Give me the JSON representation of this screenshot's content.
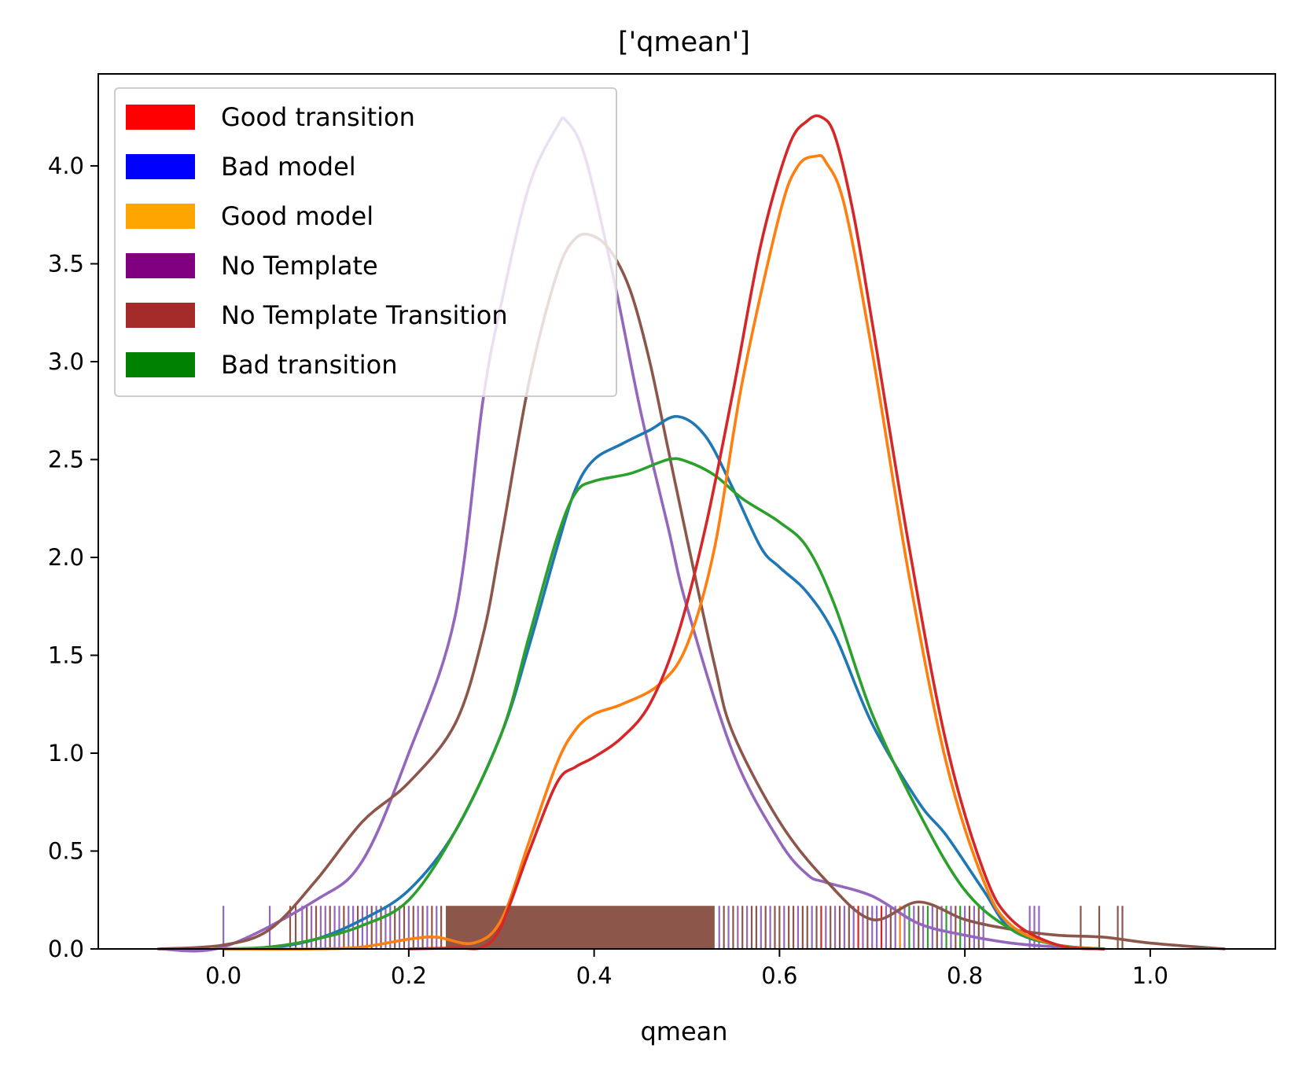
{
  "chart_data": {
    "type": "line",
    "title": "['qmean']",
    "xlabel": "qmean",
    "ylabel": "",
    "xlim": [
      -0.135,
      1.135
    ],
    "ylim": [
      0,
      4.47
    ],
    "xticks": [
      "0.0",
      "0.2",
      "0.4",
      "0.6",
      "0.8",
      "1.0"
    ],
    "yticks": [
      "0.0",
      "0.5",
      "1.0",
      "1.5",
      "2.0",
      "2.5",
      "3.0",
      "3.5",
      "4.0"
    ],
    "grid": false,
    "legend_position": "top-left",
    "legend": [
      {
        "label": "Good transition",
        "color": "#ff0000"
      },
      {
        "label": "Bad model",
        "color": "#0000ff"
      },
      {
        "label": "Good model",
        "color": "#ffa500"
      },
      {
        "label": "No Template",
        "color": "#800080"
      },
      {
        "label": "No Template Transition",
        "color": "#a52a2a"
      },
      {
        "label": "Bad transition",
        "color": "#008000"
      }
    ],
    "series": [
      {
        "color": "#9467bd",
        "x": [
          -0.07,
          0.0,
          0.1,
          0.15,
          0.2,
          0.25,
          0.28,
          0.3,
          0.33,
          0.36,
          0.37,
          0.39,
          0.42,
          0.45,
          0.48,
          0.5,
          0.55,
          0.6,
          0.63,
          0.65,
          0.7,
          0.75,
          0.8,
          0.85,
          0.9,
          0.95
        ],
        "y": [
          0,
          0.01,
          0.25,
          0.45,
          1.0,
          1.7,
          2.8,
          3.3,
          3.9,
          4.2,
          4.23,
          4.05,
          3.45,
          2.75,
          2.15,
          1.75,
          1.0,
          0.55,
          0.38,
          0.34,
          0.27,
          0.13,
          0.07,
          0.03,
          0.01,
          0
        ]
      },
      {
        "color": "#8c564b",
        "x": [
          -0.07,
          0.0,
          0.05,
          0.1,
          0.15,
          0.2,
          0.25,
          0.28,
          0.3,
          0.33,
          0.36,
          0.38,
          0.4,
          0.42,
          0.44,
          0.46,
          0.48,
          0.5,
          0.53,
          0.55,
          0.6,
          0.65,
          0.7,
          0.75,
          0.8,
          0.85,
          0.9,
          0.95,
          1.0,
          1.08
        ],
        "y": [
          0,
          0.02,
          0.1,
          0.35,
          0.65,
          0.85,
          1.15,
          1.6,
          2.1,
          2.9,
          3.45,
          3.63,
          3.64,
          3.55,
          3.35,
          3.0,
          2.55,
          2.1,
          1.45,
          1.1,
          0.65,
          0.35,
          0.15,
          0.24,
          0.15,
          0.1,
          0.07,
          0.06,
          0.03,
          0
        ]
      },
      {
        "color": "#1f77b4",
        "x": [
          0.0,
          0.05,
          0.1,
          0.15,
          0.2,
          0.25,
          0.3,
          0.33,
          0.36,
          0.38,
          0.4,
          0.43,
          0.46,
          0.49,
          0.52,
          0.55,
          0.58,
          0.6,
          0.63,
          0.66,
          0.7,
          0.75,
          0.78,
          0.82,
          0.85,
          0.9,
          0.95
        ],
        "y": [
          0,
          0.005,
          0.05,
          0.15,
          0.3,
          0.6,
          1.1,
          1.55,
          2.05,
          2.35,
          2.5,
          2.58,
          2.65,
          2.72,
          2.62,
          2.35,
          2.05,
          1.95,
          1.82,
          1.6,
          1.15,
          0.75,
          0.58,
          0.3,
          0.1,
          0.02,
          0
        ]
      },
      {
        "color": "#2ca02c",
        "x": [
          0.0,
          0.05,
          0.1,
          0.15,
          0.2,
          0.25,
          0.3,
          0.33,
          0.36,
          0.38,
          0.4,
          0.44,
          0.48,
          0.5,
          0.53,
          0.56,
          0.6,
          0.63,
          0.66,
          0.7,
          0.75,
          0.8,
          0.85,
          0.9,
          0.95
        ],
        "y": [
          0,
          0.01,
          0.05,
          0.12,
          0.25,
          0.6,
          1.1,
          1.6,
          2.1,
          2.33,
          2.39,
          2.43,
          2.5,
          2.49,
          2.42,
          2.3,
          2.18,
          2.05,
          1.75,
          1.2,
          0.7,
          0.3,
          0.1,
          0.02,
          0
        ]
      },
      {
        "color": "#ff7f0e",
        "x": [
          0.0,
          0.1,
          0.15,
          0.2,
          0.23,
          0.27,
          0.3,
          0.33,
          0.36,
          0.38,
          0.4,
          0.43,
          0.47,
          0.5,
          0.53,
          0.56,
          0.6,
          0.62,
          0.64,
          0.65,
          0.67,
          0.7,
          0.74,
          0.78,
          0.82,
          0.85,
          0.9,
          0.95
        ],
        "y": [
          0,
          0.0,
          0.01,
          0.05,
          0.06,
          0.03,
          0.15,
          0.55,
          0.95,
          1.12,
          1.2,
          1.25,
          1.35,
          1.55,
          2.05,
          2.9,
          3.75,
          4.0,
          4.05,
          4.02,
          3.8,
          3.05,
          1.9,
          0.95,
          0.35,
          0.12,
          0.02,
          0
        ]
      },
      {
        "color": "#d62728",
        "x": [
          0.2,
          0.25,
          0.28,
          0.3,
          0.33,
          0.36,
          0.38,
          0.4,
          0.43,
          0.46,
          0.49,
          0.52,
          0.55,
          0.58,
          0.61,
          0.63,
          0.645,
          0.66,
          0.68,
          0.7,
          0.74,
          0.78,
          0.82,
          0.85,
          0.9,
          0.95
        ],
        "y": [
          0,
          0.005,
          0.01,
          0.12,
          0.5,
          0.85,
          0.93,
          0.98,
          1.08,
          1.25,
          1.6,
          2.15,
          2.85,
          3.6,
          4.1,
          4.23,
          4.25,
          4.15,
          3.75,
          3.2,
          2.05,
          1.05,
          0.4,
          0.15,
          0.02,
          0
        ]
      }
    ],
    "rug": {
      "height": 0.22,
      "dense_range": [
        0.24,
        0.53
      ],
      "ticks": [
        {
          "x": 0.0,
          "color": "#9467bd"
        },
        {
          "x": 0.05,
          "color": "#9467bd"
        },
        {
          "x": 0.072,
          "color": "#8c564b"
        },
        {
          "x": 0.078,
          "color": "#8c564b"
        },
        {
          "x": 0.085,
          "color": "#9467bd"
        },
        {
          "x": 0.09,
          "color": "#8c564b"
        },
        {
          "x": 0.095,
          "color": "#9467bd"
        },
        {
          "x": 0.1,
          "color": "#8c564b"
        },
        {
          "x": 0.105,
          "color": "#9467bd"
        },
        {
          "x": 0.11,
          "color": "#9467bd"
        },
        {
          "x": 0.115,
          "color": "#8c564b"
        },
        {
          "x": 0.12,
          "color": "#9467bd"
        },
        {
          "x": 0.125,
          "color": "#9467bd"
        },
        {
          "x": 0.13,
          "color": "#8c564b"
        },
        {
          "x": 0.135,
          "color": "#9467bd"
        },
        {
          "x": 0.14,
          "color": "#9467bd"
        },
        {
          "x": 0.145,
          "color": "#8c564b"
        },
        {
          "x": 0.15,
          "color": "#9467bd"
        },
        {
          "x": 0.155,
          "color": "#9467bd"
        },
        {
          "x": 0.16,
          "color": "#8c564b"
        },
        {
          "x": 0.165,
          "color": "#9467bd"
        },
        {
          "x": 0.17,
          "color": "#8c564b"
        },
        {
          "x": 0.175,
          "color": "#9467bd"
        },
        {
          "x": 0.18,
          "color": "#9467bd"
        },
        {
          "x": 0.185,
          "color": "#8c564b"
        },
        {
          "x": 0.19,
          "color": "#9467bd"
        },
        {
          "x": 0.195,
          "color": "#8c564b"
        },
        {
          "x": 0.2,
          "color": "#9467bd"
        },
        {
          "x": 0.205,
          "color": "#8c564b"
        },
        {
          "x": 0.21,
          "color": "#9467bd"
        },
        {
          "x": 0.215,
          "color": "#8c564b"
        },
        {
          "x": 0.22,
          "color": "#9467bd"
        },
        {
          "x": 0.225,
          "color": "#8c564b"
        },
        {
          "x": 0.23,
          "color": "#9467bd"
        },
        {
          "x": 0.235,
          "color": "#8c564b"
        },
        {
          "x": 0.535,
          "color": "#9467bd"
        },
        {
          "x": 0.54,
          "color": "#8c564b"
        },
        {
          "x": 0.545,
          "color": "#9467bd"
        },
        {
          "x": 0.55,
          "color": "#8c564b"
        },
        {
          "x": 0.555,
          "color": "#9467bd"
        },
        {
          "x": 0.56,
          "color": "#8c564b"
        },
        {
          "x": 0.565,
          "color": "#9467bd"
        },
        {
          "x": 0.57,
          "color": "#8c564b"
        },
        {
          "x": 0.575,
          "color": "#8c564b"
        },
        {
          "x": 0.58,
          "color": "#9467bd"
        },
        {
          "x": 0.585,
          "color": "#8c564b"
        },
        {
          "x": 0.59,
          "color": "#9467bd"
        },
        {
          "x": 0.595,
          "color": "#8c564b"
        },
        {
          "x": 0.6,
          "color": "#8c564b"
        },
        {
          "x": 0.605,
          "color": "#9467bd"
        },
        {
          "x": 0.61,
          "color": "#8c564b"
        },
        {
          "x": 0.615,
          "color": "#8c564b"
        },
        {
          "x": 0.62,
          "color": "#9467bd"
        },
        {
          "x": 0.625,
          "color": "#8c564b"
        },
        {
          "x": 0.63,
          "color": "#8c564b"
        },
        {
          "x": 0.635,
          "color": "#9467bd"
        },
        {
          "x": 0.64,
          "color": "#8c564b"
        },
        {
          "x": 0.645,
          "color": "#d62728"
        },
        {
          "x": 0.65,
          "color": "#9467bd"
        },
        {
          "x": 0.655,
          "color": "#8c564b"
        },
        {
          "x": 0.66,
          "color": "#9467bd"
        },
        {
          "x": 0.665,
          "color": "#8c564b"
        },
        {
          "x": 0.67,
          "color": "#9467bd"
        },
        {
          "x": 0.675,
          "color": "#8c564b"
        },
        {
          "x": 0.68,
          "color": "#9467bd"
        },
        {
          "x": 0.685,
          "color": "#d62728"
        },
        {
          "x": 0.69,
          "color": "#9467bd"
        },
        {
          "x": 0.695,
          "color": "#8c564b"
        },
        {
          "x": 0.7,
          "color": "#9467bd"
        },
        {
          "x": 0.705,
          "color": "#9467bd"
        },
        {
          "x": 0.71,
          "color": "#d62728"
        },
        {
          "x": 0.715,
          "color": "#9467bd"
        },
        {
          "x": 0.72,
          "color": "#8c564b"
        },
        {
          "x": 0.725,
          "color": "#9467bd"
        },
        {
          "x": 0.73,
          "color": "#ff7f0e"
        },
        {
          "x": 0.735,
          "color": "#9467bd"
        },
        {
          "x": 0.74,
          "color": "#2ca02c"
        },
        {
          "x": 0.745,
          "color": "#9467bd"
        },
        {
          "x": 0.75,
          "color": "#8c564b"
        },
        {
          "x": 0.755,
          "color": "#9467bd"
        },
        {
          "x": 0.76,
          "color": "#2ca02c"
        },
        {
          "x": 0.765,
          "color": "#9467bd"
        },
        {
          "x": 0.77,
          "color": "#8c564b"
        },
        {
          "x": 0.775,
          "color": "#9467bd"
        },
        {
          "x": 0.78,
          "color": "#2ca02c"
        },
        {
          "x": 0.785,
          "color": "#9467bd"
        },
        {
          "x": 0.79,
          "color": "#8c564b"
        },
        {
          "x": 0.795,
          "color": "#2ca02c"
        },
        {
          "x": 0.8,
          "color": "#9467bd"
        },
        {
          "x": 0.805,
          "color": "#8c564b"
        },
        {
          "x": 0.81,
          "color": "#9467bd"
        },
        {
          "x": 0.815,
          "color": "#8c564b"
        },
        {
          "x": 0.82,
          "color": "#9467bd"
        },
        {
          "x": 0.87,
          "color": "#9467bd"
        },
        {
          "x": 0.875,
          "color": "#9467bd"
        },
        {
          "x": 0.88,
          "color": "#9467bd"
        },
        {
          "x": 0.925,
          "color": "#8c564b"
        },
        {
          "x": 0.945,
          "color": "#8c564b"
        },
        {
          "x": 0.965,
          "color": "#8c564b"
        },
        {
          "x": 0.97,
          "color": "#8c564b"
        }
      ]
    }
  }
}
